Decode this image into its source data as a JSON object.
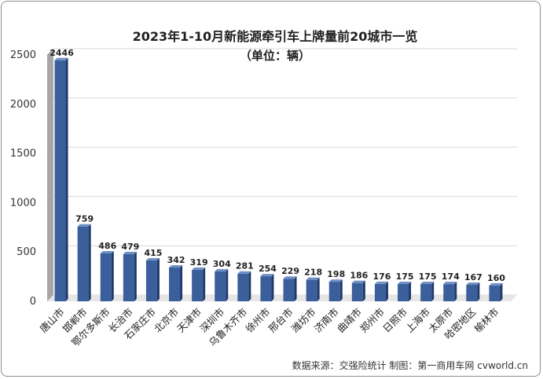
{
  "chart_data": {
    "type": "bar",
    "title": "2023年1-10月新能源牵引车上牌量前20城市一览",
    "subtitle": "（单位：辆）",
    "xlabel": "",
    "ylabel": "",
    "ylim": [
      0,
      2500
    ],
    "yticks": [
      0,
      500,
      1000,
      1500,
      2000,
      2500
    ],
    "grid": true,
    "legend": "none",
    "categories": [
      "唐山市",
      "邯郸市",
      "鄂尔多斯市",
      "长治市",
      "石家庄市",
      "北京市",
      "天津市",
      "深圳市",
      "乌鲁木齐市",
      "徐州市",
      "邢台市",
      "潍坊市",
      "济南市",
      "曲靖市",
      "郑州市",
      "日照市",
      "上海市",
      "太原市",
      "哈密地区",
      "榆林市"
    ],
    "values": [
      2446,
      759,
      486,
      479,
      415,
      342,
      319,
      304,
      281,
      254,
      229,
      218,
      198,
      186,
      176,
      175,
      175,
      174,
      167,
      160
    ],
    "colors": {
      "bar_front": "#3a5f9a",
      "bar_side": "#1e3a6b",
      "bar_top": "#6f8fc4",
      "wall": "#a6a6a6"
    }
  },
  "footer": "数据来源：交强险统计 制图：第一商用车网 cvworld.cn"
}
